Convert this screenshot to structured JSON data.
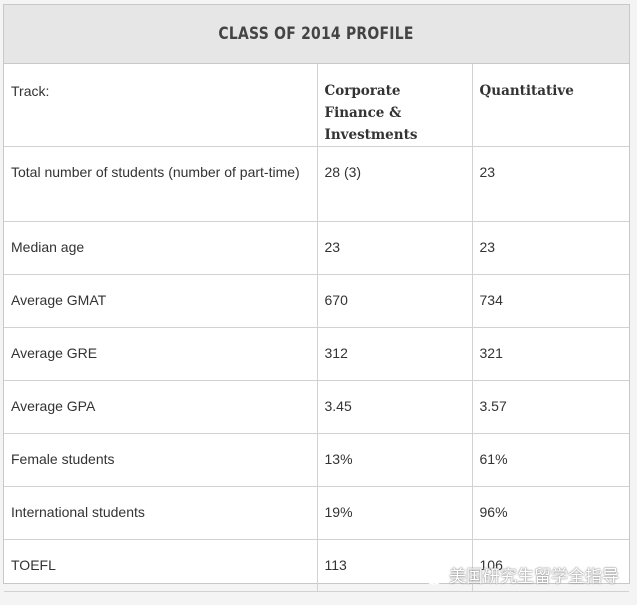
{
  "title": "CLASS OF 2014 PROFILE",
  "table": {
    "header": [
      "Track:",
      "Corporate Finance & Investments",
      "Quantitative"
    ],
    "rows": [
      [
        "Total number of students (number of part-time)",
        "28 (3)",
        "23"
      ],
      [
        "Median age",
        "23",
        "23"
      ],
      [
        "Average GMAT",
        "670",
        "734"
      ],
      [
        "Average GRE",
        "312",
        "321"
      ],
      [
        "Average GPA",
        "3.45",
        "3.57"
      ],
      [
        "Female students",
        "13%",
        "61%"
      ],
      [
        "International students",
        "19%",
        "96%"
      ],
      [
        "TOEFL",
        "113",
        "106"
      ]
    ]
  },
  "watermark": {
    "text": "美国研究生留学全指导",
    "icon": "wechat-icon"
  }
}
